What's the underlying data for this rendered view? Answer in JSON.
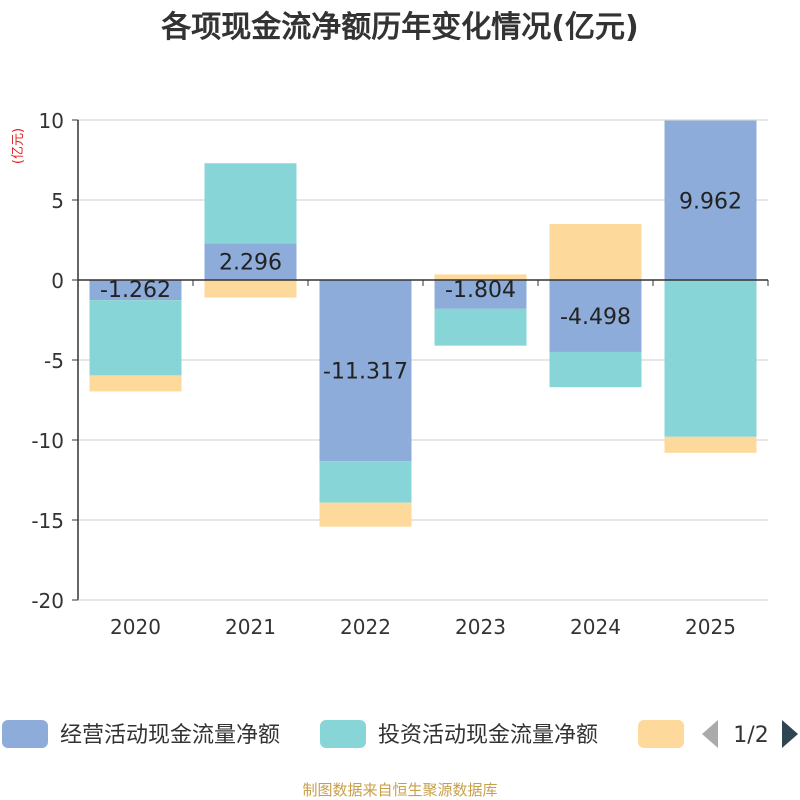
{
  "chart_data": {
    "type": "bar",
    "stacked": true,
    "title": "各项现金流净额历年变化情况(亿元)",
    "ylabel": "(亿元)",
    "xlabel": "",
    "ylim": [
      -20,
      10
    ],
    "yticks": [
      10,
      5,
      0,
      -5,
      -10,
      -15,
      -20
    ],
    "grid": true,
    "categories": [
      "2020",
      "2021",
      "2022",
      "2023",
      "2024",
      "2025"
    ],
    "series": [
      {
        "name": "经营活动现金流量净额",
        "color": "#8eacd9",
        "values": [
          -1.262,
          2.296,
          -11.317,
          -1.804,
          -4.498,
          9.962
        ],
        "show_labels": true
      },
      {
        "name": "投资活动现金流量净额",
        "color": "#88d5d8",
        "values": [
          -4.7,
          5.0,
          -2.6,
          -2.3,
          -2.2,
          -9.8
        ],
        "show_labels": false
      },
      {
        "name": "",
        "color": "#fdd99b",
        "values": [
          -1.0,
          -1.1,
          -1.5,
          0.35,
          3.5,
          -1.0
        ],
        "show_labels": false
      }
    ],
    "legend": {
      "position": "bottom",
      "page": "1/2"
    },
    "source": "制图数据来自恒生聚源数据库"
  }
}
